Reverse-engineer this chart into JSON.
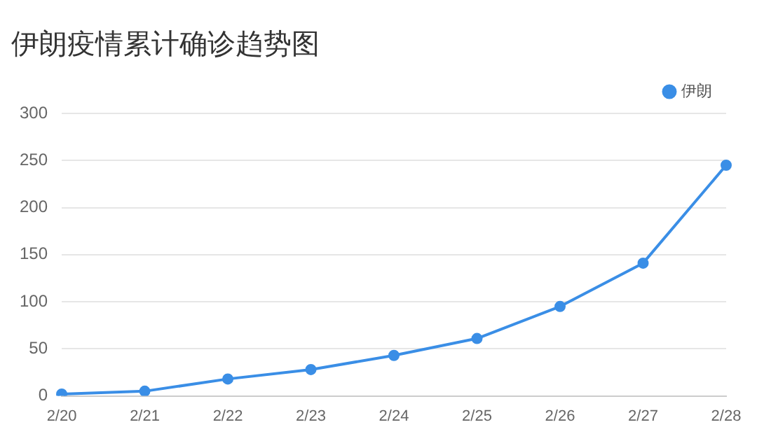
{
  "chart_data": {
    "type": "line",
    "title": "伊朗疫情累计确诊趋势图",
    "categories": [
      "2/20",
      "2/21",
      "2/22",
      "2/23",
      "2/24",
      "2/25",
      "2/26",
      "2/27",
      "2/28"
    ],
    "series": [
      {
        "name": "伊朗",
        "color": "#3a8ee6",
        "values": [
          2,
          5,
          18,
          28,
          43,
          61,
          95,
          141,
          245
        ]
      }
    ],
    "ylim": [
      0,
      300
    ],
    "yticks": [
      0,
      50,
      100,
      150,
      200,
      250,
      300
    ],
    "grid": "y",
    "legend": "top right",
    "marker": "circle",
    "line_style": "solid"
  }
}
